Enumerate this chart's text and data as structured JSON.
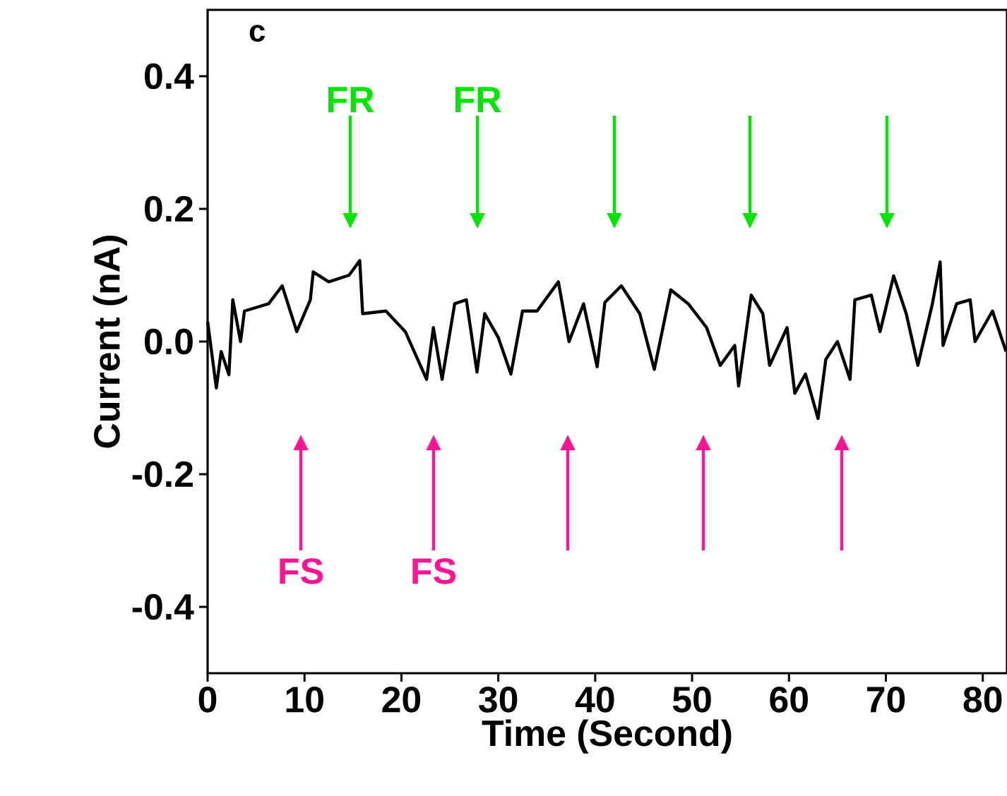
{
  "chart_data": {
    "type": "line",
    "xlabel": "Time (Second)",
    "ylabel": "Current (nA)",
    "xlim": [
      0,
      82.5
    ],
    "xticks": [
      0,
      10,
      20,
      30,
      40,
      50,
      60,
      70,
      80
    ],
    "ylim": [
      -0.5,
      0.5
    ],
    "yticks": [
      {
        "value": -0.4,
        "label": "-0.4"
      },
      {
        "value": -0.2,
        "label": "-0.2"
      },
      {
        "value": 0,
        "label": "0.0"
      },
      {
        "value": 0.2,
        "label": "0.2"
      },
      {
        "value": 0.4,
        "label": "0.4"
      }
    ],
    "grid": false,
    "series": [
      {
        "color": "#000000",
        "x": [
          0,
          0.9,
          1.4,
          2.2,
          2.6,
          3.4,
          3.8,
          6.3,
          7.7,
          9.2,
          10.6,
          10.9,
          12.5,
          14.6,
          15.7,
          16,
          18.4,
          20.4,
          22.6,
          23.3,
          24.2,
          25.5,
          26.7,
          27.8,
          28.6,
          30,
          31.3,
          32.5,
          34,
          36.2,
          37.3,
          38.8,
          40.2,
          41,
          42.7,
          44.6,
          46.1,
          47.8,
          49.6,
          51.5,
          52.9,
          54.4,
          54.8,
          56.1,
          57.3,
          58,
          59.8,
          60.6,
          61.7,
          63,
          63.8,
          65,
          66.3,
          66.8,
          68.5,
          69.4,
          70.8,
          72.1,
          73.3,
          74.8,
          75.6,
          75.9,
          77.3,
          78.7,
          79.2,
          81,
          82.4
        ],
        "values": [
          0.03,
          -0.07,
          -0.015,
          -0.05,
          0.063,
          0,
          0.046,
          0.057,
          0.084,
          0.015,
          0.063,
          0.105,
          0.09,
          0.1,
          0.122,
          0.042,
          0.046,
          0.015,
          -0.057,
          0.021,
          -0.057,
          0.057,
          0.063,
          -0.046,
          0.042,
          0.006,
          -0.049,
          0.046,
          0.046,
          0.09,
          0,
          0.057,
          -0.038,
          0.059,
          0.084,
          0.042,
          -0.042,
          0.078,
          0.057,
          0.021,
          -0.036,
          -0.006,
          -0.067,
          0.07,
          0.042,
          -0.036,
          0.021,
          -0.078,
          -0.049,
          -0.116,
          -0.027,
          0,
          -0.057,
          0.063,
          0.07,
          0.015,
          0.099,
          0.042,
          -0.036,
          0.057,
          0.12,
          -0.006,
          0.057,
          0.063,
          0,
          0.046,
          -0.015
        ]
      }
    ],
    "annotations": [
      "c",
      "FR",
      "FR",
      "FS",
      "FS"
    ]
  }
}
